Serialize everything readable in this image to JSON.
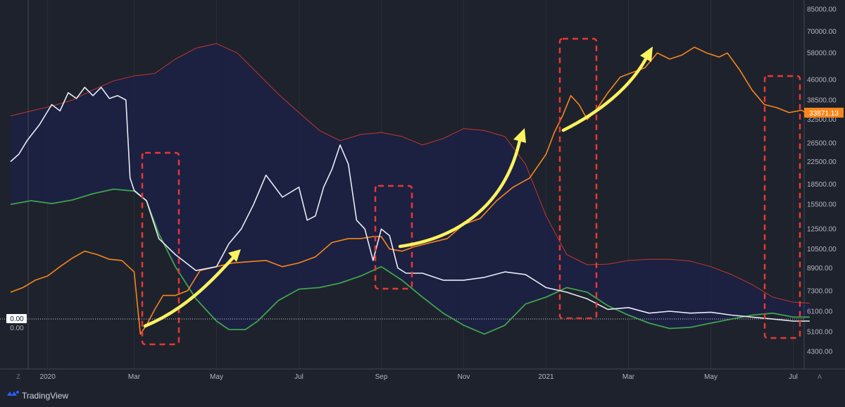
{
  "brand": {
    "name": "TradingView",
    "icon": "tradingview-logo-icon"
  },
  "corners": {
    "left": "Z",
    "right": "A"
  },
  "colors": {
    "background": "#1e222d",
    "band_fill": "#1c2045",
    "upper_band": "#c0392b",
    "lower_band": "#3fa34d",
    "price": "#f7861b",
    "oscillator": "#e9ecf3",
    "arrow": "#fbf260",
    "highlight_box": "#e53935",
    "price_tag": "#f7861b"
  },
  "chart_data": {
    "type": "line",
    "y_axis": {
      "scale": "log",
      "range": [
        3900,
        85000
      ],
      "ticks": [
        "85000.00",
        "70000.00",
        "58000.00",
        "46000.00",
        "38500.00",
        "32500.00",
        "26500.00",
        "22500.00",
        "18500.00",
        "15500.00",
        "12500.00",
        "10500.00",
        "8900.00",
        "7300.00",
        "6100.00",
        "5100.00",
        "4300.00"
      ]
    },
    "x_axis": {
      "ticks": [
        {
          "label": "2020",
          "t": 0.9
        },
        {
          "label": "Mar",
          "t": 3.0
        },
        {
          "label": "May",
          "t": 5.0
        },
        {
          "label": "Jul",
          "t": 7.0
        },
        {
          "label": "Sep",
          "t": 9.0
        },
        {
          "label": "Nov",
          "t": 11.0
        },
        {
          "label": "2021",
          "t": 13.0
        },
        {
          "label": "Mar",
          "t": 15.0
        },
        {
          "label": "May",
          "t": 17.0
        },
        {
          "label": "Jul",
          "t": 19.0
        }
      ]
    },
    "last_price": "33871.13",
    "zero_labels": [
      "0.00",
      "0.00"
    ],
    "series": [
      {
        "role": "upper-band",
        "x": [
          0.0,
          0.5,
          1.0,
          1.5,
          2.0,
          2.5,
          3.0,
          3.5,
          4.0,
          4.5,
          5.0,
          5.5,
          6.0,
          6.5,
          7.0,
          7.5,
          8.0,
          8.5,
          9.0,
          9.5,
          10.0,
          10.5,
          11.0,
          11.5,
          12.0,
          12.5,
          13.0,
          13.5,
          14.0,
          14.5,
          15.0,
          15.5,
          16.0,
          16.5,
          17.0,
          17.5,
          18.0,
          18.5,
          19.0,
          19.4
        ],
        "y": [
          33500,
          35000,
          36500,
          38500,
          42000,
          45500,
          47500,
          48500,
          55000,
          60500,
          63000,
          58000,
          48500,
          40500,
          34500,
          29500,
          27000,
          28500,
          29000,
          28000,
          26000,
          27500,
          30000,
          29500,
          28000,
          22000,
          14000,
          10000,
          9150,
          9200,
          9500,
          9600,
          9600,
          9450,
          9000,
          8400,
          7700,
          6900,
          6600,
          6550
        ]
      },
      {
        "role": "lower-band",
        "x": [
          0.0,
          0.5,
          1.0,
          1.5,
          2.0,
          2.5,
          3.0,
          3.3,
          3.6,
          4.0,
          4.5,
          5.0,
          5.3,
          5.7,
          6.0,
          6.5,
          7.0,
          7.5,
          8.0,
          8.5,
          9.0,
          9.5,
          10.0,
          10.5,
          11.0,
          11.5,
          12.0,
          12.5,
          13.0,
          13.5,
          14.0,
          14.5,
          15.0,
          15.5,
          16.0,
          16.5,
          17.0,
          17.5,
          18.0,
          18.5,
          19.0,
          19.4
        ],
        "y": [
          15500,
          16000,
          15600,
          16100,
          17000,
          17700,
          17400,
          16000,
          12000,
          9000,
          6800,
          5600,
          5200,
          5200,
          5600,
          6700,
          7400,
          7500,
          7800,
          8300,
          9000,
          8000,
          6900,
          6000,
          5400,
          5000,
          5400,
          6500,
          6900,
          7500,
          7200,
          6400,
          5900,
          5500,
          5250,
          5300,
          5500,
          5700,
          5900,
          6000,
          5800,
          5800
        ]
      },
      {
        "role": "price",
        "x": [
          0.0,
          0.3,
          0.6,
          0.9,
          1.2,
          1.5,
          1.8,
          2.1,
          2.4,
          2.7,
          3.0,
          3.15,
          3.3,
          3.5,
          3.7,
          4.0,
          4.3,
          4.6,
          5.0,
          5.4,
          5.8,
          6.2,
          6.6,
          7.0,
          7.4,
          7.8,
          8.2,
          8.5,
          8.8,
          9.0,
          9.2,
          9.5,
          9.8,
          10.2,
          10.6,
          11.0,
          11.4,
          11.8,
          12.2,
          12.6,
          13.0,
          13.2,
          13.4,
          13.6,
          13.8,
          14.0,
          14.2,
          14.5,
          14.8,
          15.1,
          15.4,
          15.7,
          16.0,
          16.3,
          16.6,
          16.9,
          17.2,
          17.4,
          17.7,
          18.0,
          18.3,
          18.6,
          18.9,
          19.2,
          19.4
        ],
        "y": [
          7200,
          7500,
          8000,
          8300,
          9000,
          9700,
          10300,
          10000,
          9600,
          9500,
          8600,
          5000,
          5400,
          6200,
          7000,
          7000,
          7300,
          8700,
          9000,
          9300,
          9400,
          9500,
          9000,
          9300,
          9800,
          11100,
          11500,
          11500,
          11700,
          11700,
          10500,
          10300,
          10700,
          11100,
          11500,
          13000,
          13700,
          16000,
          18000,
          19500,
          24000,
          29000,
          33500,
          40000,
          37000,
          32500,
          35000,
          41000,
          47000,
          49000,
          51000,
          58000,
          55000,
          57000,
          61000,
          58000,
          56000,
          58000,
          50000,
          42000,
          37000,
          36000,
          34500,
          35200,
          33871
        ]
      },
      {
        "role": "oscillator",
        "x": [
          0.0,
          0.2,
          0.4,
          0.7,
          1.0,
          1.2,
          1.4,
          1.6,
          1.8,
          2.0,
          2.2,
          2.4,
          2.6,
          2.8,
          2.9,
          3.0,
          3.3,
          3.6,
          4.0,
          4.5,
          5.0,
          5.3,
          5.6,
          5.9,
          6.2,
          6.6,
          7.0,
          7.2,
          7.4,
          7.6,
          7.8,
          8.0,
          8.2,
          8.4,
          8.6,
          8.8,
          9.0,
          9.2,
          9.4,
          9.6,
          10.0,
          10.5,
          11.0,
          11.5,
          12.0,
          12.5,
          13.0,
          13.5,
          14.0,
          14.5,
          15.0,
          15.5,
          16.0,
          16.5,
          17.0,
          17.5,
          18.0,
          18.5,
          19.0,
          19.4
        ],
        "y": [
          22500,
          24000,
          27000,
          31000,
          37000,
          35000,
          41000,
          39000,
          43000,
          40000,
          43000,
          39000,
          40000,
          38500,
          19500,
          17500,
          16000,
          11500,
          10000,
          8700,
          9000,
          11000,
          12500,
          15500,
          20000,
          16500,
          18000,
          13500,
          14000,
          18000,
          21000,
          26000,
          22000,
          13500,
          12500,
          9500,
          12500,
          11800,
          8900,
          8500,
          8500,
          8000,
          8000,
          8200,
          8600,
          8400,
          7500,
          7200,
          6800,
          6200,
          6300,
          6000,
          6100,
          6000,
          6050,
          5900,
          5800,
          5700,
          5600,
          5600
        ]
      }
    ]
  }
}
